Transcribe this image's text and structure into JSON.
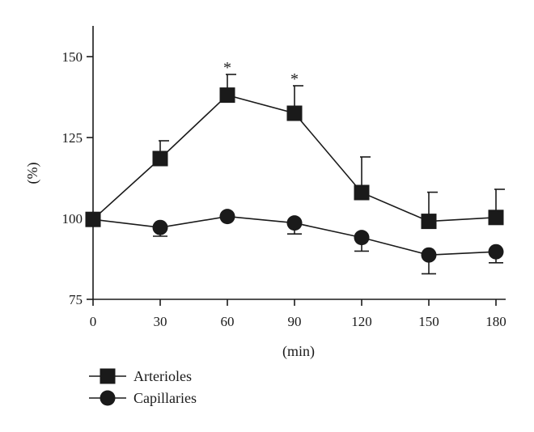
{
  "chart_data": {
    "type": "line",
    "xlabel": "(min)",
    "ylabel": "(%)",
    "x": [
      0,
      30,
      60,
      90,
      120,
      150,
      180
    ],
    "xticks": [
      "0",
      "30",
      "60",
      "90",
      "120",
      "150",
      "180"
    ],
    "yticks": [
      "75",
      "100",
      "125",
      "150"
    ],
    "xlim": [
      0,
      180
    ],
    "ylim": [
      75,
      160
    ],
    "grid": false,
    "legend_position": "bottom-left",
    "series": [
      {
        "name": "Arterioles",
        "marker": "square",
        "values": [
          99.7,
          118.5,
          138.1,
          132.5,
          108.0,
          99.1,
          100.3
        ],
        "error_upper": [
          0,
          5.5,
          6.4,
          8.5,
          11.0,
          9.0,
          8.7
        ],
        "error_lower": [
          0,
          0,
          0,
          0,
          0,
          0,
          0
        ]
      },
      {
        "name": "Capillaries",
        "marker": "circle",
        "values": [
          99.7,
          97.2,
          100.6,
          98.6,
          94.1,
          88.7,
          89.7
        ],
        "error_upper": [
          0,
          0,
          0,
          0,
          0,
          0,
          0
        ],
        "error_lower": [
          0,
          2.7,
          0,
          3.4,
          4.2,
          5.8,
          3.4
        ]
      }
    ],
    "annotations": [
      {
        "text": "*",
        "x": 60,
        "y": 146.5
      },
      {
        "text": "*",
        "x": 90,
        "y": 143.0
      }
    ]
  }
}
